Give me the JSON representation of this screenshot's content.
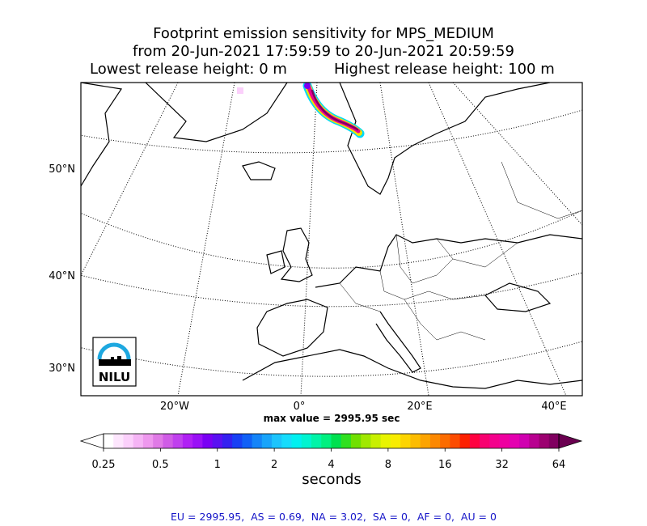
{
  "title": {
    "line1": "Footprint emission sensitivity for MPS_MEDIUM",
    "line2": "from 20-Jun-2021 17:59:59 to 20-Jun-2021 20:59:59",
    "line3_left": "Lowest release height: 0 m",
    "line3_right": "Highest release height: 100 m"
  },
  "map": {
    "lat_labels": [
      "50°N",
      "40°N",
      "30°N"
    ],
    "lon_labels": [
      "20°W",
      "0°",
      "20°E",
      "40°E"
    ],
    "logo_text": "NILU",
    "max_value": "max value = 2995.95 sec"
  },
  "colorbar": {
    "tick_labels": [
      "0.25",
      "0.5",
      "1",
      "2",
      "4",
      "8",
      "16",
      "32",
      "64"
    ],
    "unit": "seconds",
    "colors": [
      "#ffffff",
      "#fde6fd",
      "#fbd0fb",
      "#f5b4f5",
      "#ee98ee",
      "#e07ae6",
      "#d05ce6",
      "#c040ee",
      "#b020f4",
      "#9a10f6",
      "#7a00f4",
      "#5a10f2",
      "#3420f0",
      "#1840f4",
      "#1060f6",
      "#1484f8",
      "#18a4fa",
      "#1cc4fc",
      "#16dcfc",
      "#00f0f0",
      "#00f4d0",
      "#00f4a8",
      "#00f080",
      "#00e050",
      "#30e020",
      "#70e000",
      "#a0e800",
      "#c8f000",
      "#e8f400",
      "#f8ec00",
      "#fcd400",
      "#fcbc00",
      "#fca400",
      "#fc8800",
      "#fc6c00",
      "#fc4c00",
      "#fc2000",
      "#ff0040",
      "#f80070",
      "#f4008c",
      "#ee00a0",
      "#e400b0",
      "#d000b0",
      "#b80090",
      "#9c0070",
      "#800060"
    ]
  },
  "region_summary": "EU = 2995.95,  AS = 0.69,  NA = 3.02,  SA = 0,  AF = 0,  AU = 0"
}
